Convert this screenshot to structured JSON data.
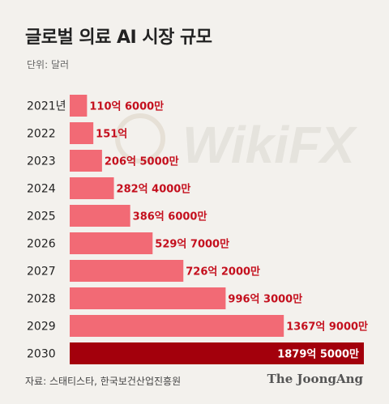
{
  "title": "글로벌 의료 AI 시장 규모",
  "unit": "단위: 달러",
  "source": "자료: 스태티스타, 한국보건산업진흥원",
  "logo": "The JoongAng",
  "watermark": "WikiFX",
  "colors": {
    "bar": "#f26a75",
    "highlight_bar": "#a3000c",
    "label": "#c4101e",
    "highlight_label": "#ffffff"
  },
  "chart_data": {
    "type": "bar",
    "orientation": "horizontal",
    "categories": [
      "2021년",
      "2022",
      "2023",
      "2024",
      "2025",
      "2026",
      "2027",
      "2028",
      "2029",
      "2030"
    ],
    "values": [
      11060000000,
      15100000000,
      20650000000,
      28240000000,
      38660000000,
      52970000000,
      72620000000,
      99630000000,
      136790000000,
      187950000000
    ],
    "value_labels": [
      "110억 6000만",
      "151억",
      "206억 5000만",
      "282억 4000만",
      "386억 6000만",
      "529억 7000만",
      "726억 2000만",
      "996억 3000만",
      "1367억 9000만",
      "1879억 5000만"
    ],
    "highlight_index": 9,
    "xlim": [
      0,
      187950000000
    ],
    "grid": false,
    "legend": "none"
  }
}
